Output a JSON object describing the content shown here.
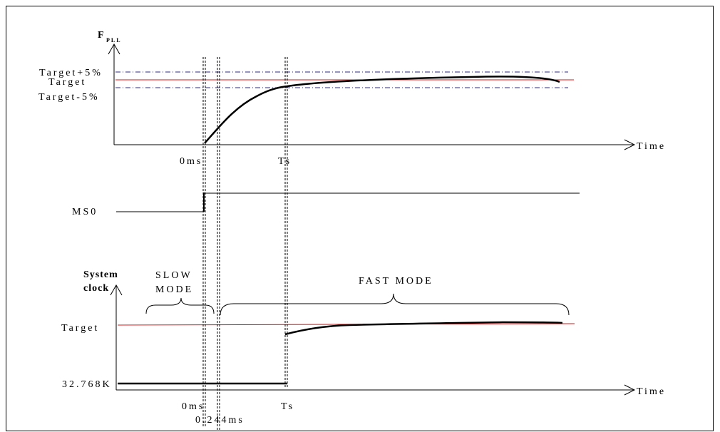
{
  "colors": {
    "axis": "#000000",
    "curve": "#000000",
    "target_line": "#d61a1a",
    "tolerance_line": "#2a2a7a",
    "marker_line": "#000000",
    "background": "#ffffff"
  },
  "top_plot": {
    "y_axis_title": "F",
    "y_axis_subscript": "PLL",
    "x_axis_label": "Time",
    "level_labels": {
      "upper": "Target+5%",
      "target": "Target",
      "lower": "Target-5%"
    },
    "time_labels": {
      "zero": "0ms",
      "ts": "Ts"
    }
  },
  "ms0": {
    "label": "MS0"
  },
  "bottom_plot": {
    "y_axis_title_line1": "System",
    "y_axis_title_line2": "clock",
    "x_axis_label": "Time",
    "target_label": "Target",
    "low_freq_label": "32.768K",
    "slow_mode_line1": "SLOW",
    "slow_mode_line2": "MODE",
    "fast_mode_label": "FAST MODE",
    "time_labels": {
      "zero": "0ms",
      "delay": "0.244ms",
      "ts": "Ts"
    }
  }
}
